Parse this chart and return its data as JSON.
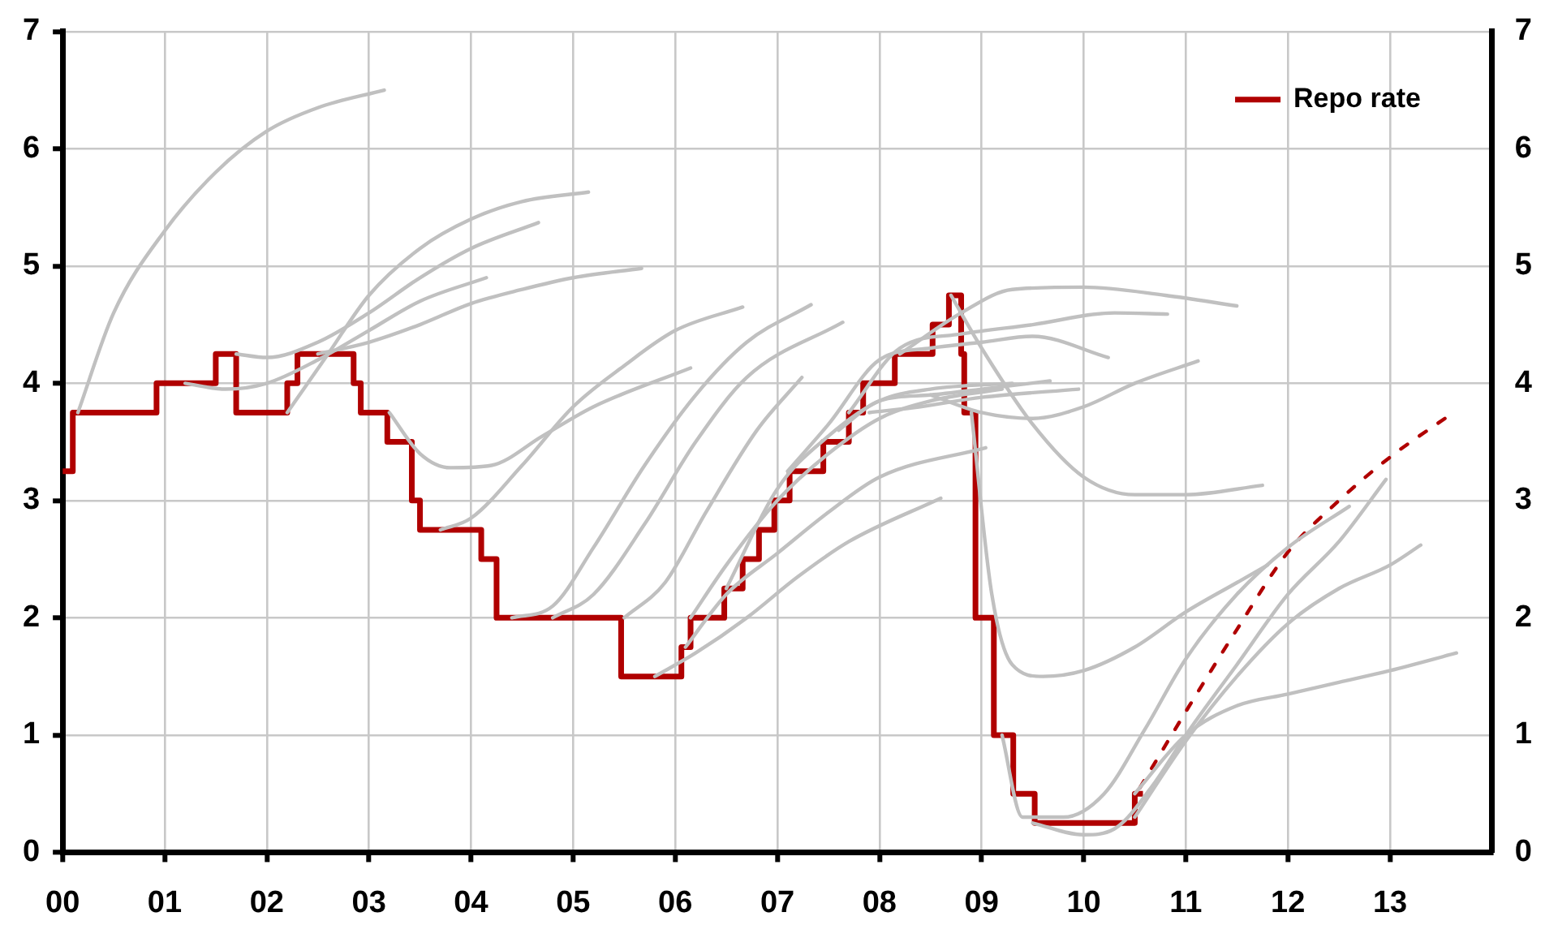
{
  "chart_data": {
    "type": "line",
    "xlim": [
      2000,
      2014
    ],
    "xticks": [
      {
        "value": 2000,
        "label": "00"
      },
      {
        "value": 2001,
        "label": "01"
      },
      {
        "value": 2002,
        "label": "02"
      },
      {
        "value": 2003,
        "label": "03"
      },
      {
        "value": 2004,
        "label": "04"
      },
      {
        "value": 2005,
        "label": "05"
      },
      {
        "value": 2006,
        "label": "06"
      },
      {
        "value": 2007,
        "label": "07"
      },
      {
        "value": 2008,
        "label": "08"
      },
      {
        "value": 2009,
        "label": "09"
      },
      {
        "value": 2010,
        "label": "10"
      },
      {
        "value": 2011,
        "label": "11"
      },
      {
        "value": 2012,
        "label": "12"
      },
      {
        "value": 2013,
        "label": "13"
      }
    ],
    "ylim": [
      0,
      7
    ],
    "yticks": [
      0,
      1,
      2,
      3,
      4,
      5,
      6,
      7
    ],
    "y2lim": [
      0,
      7
    ],
    "y2ticks": [
      0,
      1,
      2,
      3,
      4,
      5,
      6,
      7
    ],
    "grid": true,
    "legend": "top right",
    "marker": "none",
    "series": [
      {
        "color": "#c0c0c0",
        "x": [
          2000.15,
          2000.5,
          2001,
          2001.5,
          2002,
          2002.5,
          2003.15
        ],
        "values": [
          3.75,
          4.6,
          5.3,
          5.8,
          6.15,
          6.35,
          6.5
        ]
      },
      {
        "color": "#c0c0c0",
        "x": [
          2001.2,
          2001.6,
          2002,
          2002.5,
          2003,
          2003.5,
          2004.15
        ],
        "values": [
          4.0,
          3.95,
          4.0,
          4.2,
          4.45,
          4.7,
          4.9
        ]
      },
      {
        "color": "#c0c0c0",
        "x": [
          2001.7,
          2002,
          2002.5,
          2003,
          2003.5,
          2004,
          2004.66
        ],
        "values": [
          4.25,
          4.22,
          4.35,
          4.6,
          4.9,
          5.15,
          5.37
        ]
      },
      {
        "color": "#c0c0c0",
        "x": [
          2002.2,
          2002.6,
          2003,
          2003.5,
          2004,
          2004.5,
          2005.15
        ],
        "values": [
          3.75,
          4.25,
          4.75,
          5.15,
          5.4,
          5.55,
          5.63
        ]
      },
      {
        "color": "#c0c0c0",
        "x": [
          2002.5,
          2003,
          2003.5,
          2004,
          2004.5,
          2005,
          2005.67
        ],
        "values": [
          4.25,
          4.35,
          4.5,
          4.68,
          4.8,
          4.9,
          4.98
        ]
      },
      {
        "color": "#c0c0c0",
        "x": [
          2003.2,
          2003.5,
          2003.8,
          2004.2,
          2004.7,
          2005.2,
          2006.15
        ],
        "values": [
          3.75,
          3.4,
          3.28,
          3.3,
          3.55,
          3.8,
          4.13
        ]
      },
      {
        "color": "#c0c0c0",
        "x": [
          2003.7,
          2004,
          2004.5,
          2005,
          2005.5,
          2006,
          2006.66
        ],
        "values": [
          2.75,
          2.85,
          3.3,
          3.8,
          4.15,
          4.45,
          4.65
        ]
      },
      {
        "color": "#c0c0c0",
        "x": [
          2004.4,
          2004.8,
          2005.2,
          2005.7,
          2006.2,
          2006.7,
          2007.33
        ],
        "values": [
          2.0,
          2.1,
          2.6,
          3.3,
          3.9,
          4.35,
          4.67
        ]
      },
      {
        "color": "#c0c0c0",
        "x": [
          2004.8,
          2005.2,
          2005.7,
          2006.2,
          2006.7,
          2007.64
        ],
        "values": [
          2.0,
          2.2,
          2.8,
          3.5,
          4.05,
          4.52
        ]
      },
      {
        "color": "#c0c0c0",
        "x": [
          2005.5,
          2005.9,
          2006.3,
          2006.8,
          2007.24
        ],
        "values": [
          2.0,
          2.3,
          2.9,
          3.6,
          4.05
        ]
      },
      {
        "color": "#c0c0c0",
        "x": [
          2005.8,
          2006.2,
          2006.7,
          2007.2,
          2007.7,
          2008.6
        ],
        "values": [
          1.5,
          1.7,
          2.0,
          2.35,
          2.65,
          3.02
        ]
      },
      {
        "color": "#c0c0c0",
        "x": [
          2006.1,
          2006.5,
          2007,
          2007.5,
          2008,
          2009.04
        ],
        "values": [
          1.75,
          2.2,
          2.55,
          2.9,
          3.2,
          3.45
        ]
      },
      {
        "color": "#c0c0c0",
        "x": [
          2006.15,
          2006.5,
          2007,
          2007.5,
          2008,
          2008.5,
          2009.2
        ],
        "values": [
          2.0,
          2.45,
          3.0,
          3.4,
          3.7,
          3.85,
          3.95
        ]
      },
      {
        "color": "#c0c0c0",
        "x": [
          2006.5,
          2007,
          2007.5,
          2008,
          2008.5,
          2009.3
        ],
        "values": [
          2.25,
          3.1,
          3.55,
          3.85,
          3.95,
          4.0
        ]
      },
      {
        "color": "#c0c0c0",
        "x": [
          2007.1,
          2007.5,
          2008,
          2008.5,
          2009,
          2009.5,
          2010.24
        ],
        "values": [
          3.25,
          3.65,
          4.2,
          4.3,
          4.35,
          4.4,
          4.22
        ]
      },
      {
        "color": "#c0c0c0",
        "x": [
          2007.7,
          2008.2,
          2008.8,
          2009.5,
          2010.3,
          2010.82
        ],
        "values": [
          3.75,
          4.3,
          4.42,
          4.5,
          4.6,
          4.59
        ]
      },
      {
        "color": "#c0c0c0",
        "x": [
          2008.2,
          2008.8,
          2009.3,
          2010,
          2010.8,
          2011.5
        ],
        "values": [
          4.25,
          4.6,
          4.8,
          4.82,
          4.75,
          4.66
        ]
      },
      {
        "color": "#c0c0c0",
        "x": [
          2008.7,
          2009,
          2009.5,
          2010,
          2010.5,
          2011,
          2011.75
        ],
        "values": [
          4.75,
          4.3,
          3.65,
          3.2,
          3.05,
          3.05,
          3.13
        ]
      },
      {
        "color": "#c0c0c0",
        "x": [
          2008.5,
          2009,
          2009.5,
          2010,
          2010.5,
          2011.12
        ],
        "values": [
          3.9,
          3.75,
          3.7,
          3.8,
          4.0,
          4.19
        ]
      },
      {
        "color": "#c0c0c0",
        "x": [
          2007.6,
          2008,
          2008.5,
          2009,
          2009.67
        ],
        "values": [
          3.6,
          3.85,
          3.9,
          3.95,
          4.02
        ]
      },
      {
        "color": "#c0c0c0",
        "x": [
          2007.9,
          2008.4,
          2009,
          2009.95
        ],
        "values": [
          3.75,
          3.8,
          3.88,
          3.95
        ]
      },
      {
        "color": "#c0c0c0",
        "x": [
          2008.9,
          2009.1,
          2009.3,
          2009.6,
          2010,
          2010.5,
          2011,
          2011.5,
          2011.8
        ],
        "values": [
          3.75,
          2.2,
          1.6,
          1.5,
          1.55,
          1.75,
          2.05,
          2.3,
          2.45
        ]
      },
      {
        "color": "#c0c0c0",
        "x": [
          2009.2,
          2009.4,
          2009.8,
          2010.2,
          2010.6,
          2011,
          2011.5,
          2012,
          2012.6
        ],
        "values": [
          1.0,
          0.3,
          0.3,
          0.5,
          1.05,
          1.65,
          2.2,
          2.6,
          2.95
        ]
      },
      {
        "color": "#c0c0c0",
        "x": [
          2009.5,
          2010,
          2010.3,
          2010.7,
          2011,
          2011.5,
          2012,
          2012.5,
          2012.96
        ],
        "values": [
          0.25,
          0.15,
          0.2,
          0.6,
          1.0,
          1.6,
          2.2,
          2.65,
          3.18
        ]
      },
      {
        "color": "#c0c0c0",
        "x": [
          2010.5,
          2011,
          2011.5,
          2012,
          2012.5,
          2013,
          2013.65
        ],
        "values": [
          0.5,
          1.0,
          1.25,
          1.35,
          1.45,
          1.55,
          1.7
        ]
      },
      {
        "color": "#c0c0c0",
        "x": [
          2010.5,
          2011,
          2011.5,
          2012,
          2012.5,
          2013,
          2013.3
        ],
        "values": [
          0.3,
          0.95,
          1.5,
          1.95,
          2.25,
          2.45,
          2.62
        ]
      },
      {
        "color": "#b00000",
        "line_style": "dashed",
        "x": [
          2010.55,
          2011,
          2011.5,
          2012,
          2012.5,
          2013,
          2013.57
        ],
        "values": [
          0.55,
          1.2,
          1.9,
          2.56,
          3.0,
          3.37,
          3.72
        ]
      },
      {
        "type": "step",
        "name": "Repo rate",
        "color": "#b00000",
        "x": [
          2000,
          2000.1,
          2000.92,
          2001.5,
          2001.7,
          2002.2,
          2002.3,
          2002.85,
          2002.92,
          2003.18,
          2003.42,
          2003.5,
          2004.1,
          2004.25,
          2005.47,
          2006.06,
          2006.15,
          2006.48,
          2006.66,
          2006.82,
          2006.97,
          2007.12,
          2007.45,
          2007.7,
          2007.84,
          2008.15,
          2008.52,
          2008.68,
          2008.8,
          2008.83,
          2008.94,
          2009.12,
          2009.31,
          2009.52,
          2010.5,
          2010.58
        ],
        "values": [
          3.25,
          3.75,
          4.0,
          4.25,
          3.75,
          4.0,
          4.25,
          4.0,
          3.75,
          3.5,
          3.0,
          2.75,
          2.5,
          2.0,
          1.5,
          1.75,
          2.0,
          2.25,
          2.5,
          2.75,
          3.0,
          3.25,
          3.5,
          3.75,
          4.0,
          4.25,
          4.5,
          4.75,
          4.25,
          3.75,
          2.0,
          1.0,
          0.5,
          0.25,
          0.5,
          0.5
        ]
      }
    ]
  }
}
